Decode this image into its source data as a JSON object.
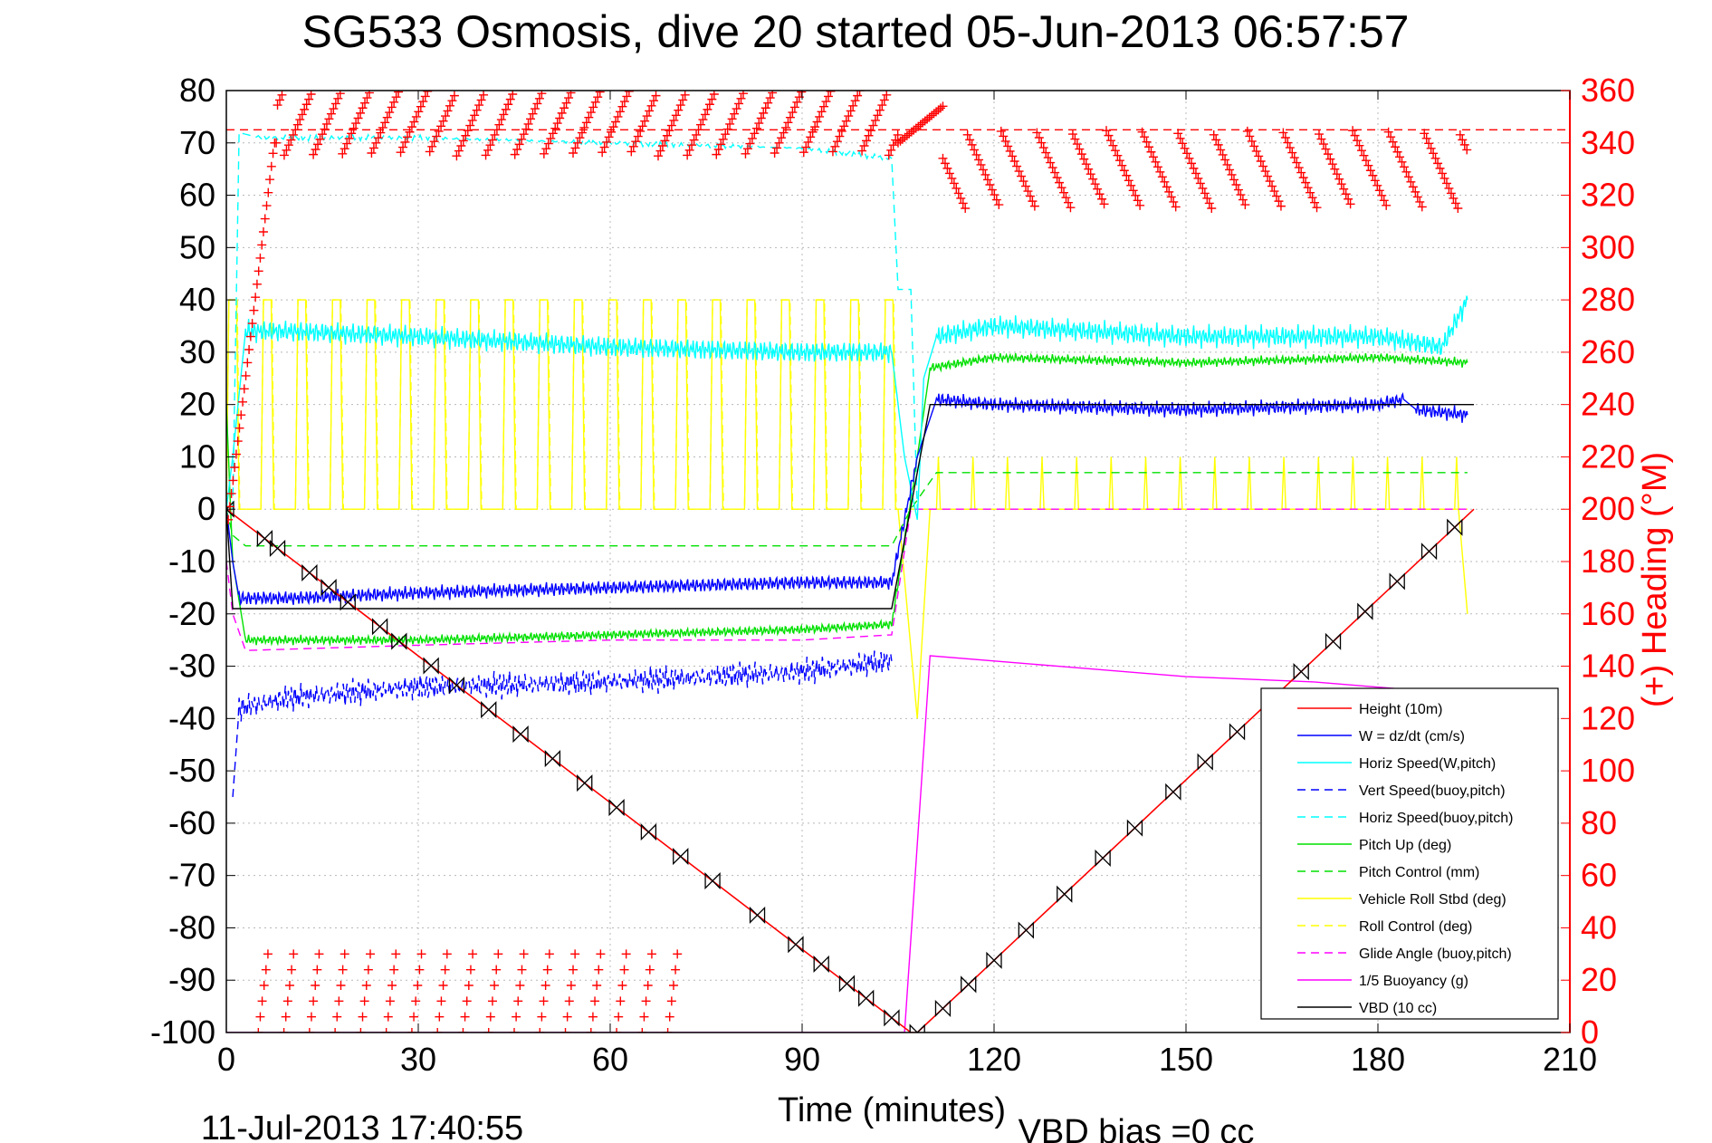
{
  "chart_data": {
    "type": "line",
    "title": "SG533 Osmosis, dive 20 started 05-Jun-2013 06:57:57",
    "xlabel": "Time (minutes)",
    "ylabel_right": "(+) Heading (°M)",
    "footer_left": "11-Jul-2013 17:40:55",
    "footer_right": "VBD bias =0 cc",
    "xlim": [
      0,
      210
    ],
    "ylim": [
      -100,
      80
    ],
    "ylim_right": [
      0,
      360
    ],
    "xticks": [
      0,
      30,
      60,
      90,
      120,
      150,
      180,
      210
    ],
    "yticks": [
      80,
      70,
      60,
      50,
      40,
      30,
      20,
      10,
      0,
      -10,
      -20,
      -30,
      -40,
      -50,
      -60,
      -70,
      -80,
      -90,
      -100
    ],
    "yticks_right": [
      360,
      340,
      320,
      300,
      280,
      260,
      240,
      220,
      200,
      180,
      160,
      140,
      120,
      100,
      80,
      60,
      40,
      20,
      0
    ],
    "grid": true,
    "legend_position": "bottom-right",
    "colors": {
      "height": "#ff0000",
      "w": "#0000ff",
      "horiz_speed": "#00ffff",
      "pitch": "#00e000",
      "roll": "#ffff00",
      "glide": "#ff00ff",
      "buoyancy": "#ff00ff",
      "vbd": "#000000",
      "heading": "#ff0000",
      "axis_right": "#ff0000"
    },
    "legend": [
      {
        "name": "Height (10m)",
        "color": "#ff0000",
        "style": "solid"
      },
      {
        "name": "W = dz/dt (cm/s)",
        "color": "#0000ff",
        "style": "solid"
      },
      {
        "name": "Horiz Speed(W,pitch)",
        "color": "#00ffff",
        "style": "solid"
      },
      {
        "name": "Vert Speed(buoy,pitch)",
        "color": "#0000ff",
        "style": "dashed"
      },
      {
        "name": "Horiz Speed(buoy,pitch)",
        "color": "#00ffff",
        "style": "dashed"
      },
      {
        "name": "Pitch Up (deg)",
        "color": "#00e000",
        "style": "solid"
      },
      {
        "name": "Pitch Control (mm)",
        "color": "#00e000",
        "style": "dashed"
      },
      {
        "name": "Vehicle Roll Stbd (deg)",
        "color": "#ffff00",
        "style": "solid"
      },
      {
        "name": "Roll Control (deg)",
        "color": "#ffff00",
        "style": "dashed"
      },
      {
        "name": "Glide Angle (buoy,pitch)",
        "color": "#ff00ff",
        "style": "dashed"
      },
      {
        "name": "1/5 Buoyancy (g)",
        "color": "#ff00ff",
        "style": "solid"
      },
      {
        "name": "VBD (10 cc)",
        "color": "#000000",
        "style": "solid"
      }
    ],
    "series": [
      {
        "name": "Height (10m)",
        "x": [
          0,
          107,
          108,
          195
        ],
        "y": [
          0,
          -100,
          -100,
          0
        ]
      },
      {
        "name": "W = dz/dt (cm/s)",
        "x": [
          0,
          1,
          2,
          10,
          30,
          60,
          90,
          104,
          108,
          111,
          120,
          150,
          180,
          184,
          186,
          194
        ],
        "y": [
          0,
          -10,
          -17,
          -17,
          -16,
          -15,
          -14,
          -14,
          10,
          21,
          20,
          19,
          20,
          21,
          19,
          18
        ]
      },
      {
        "name": "Horiz Speed(W,pitch)",
        "x": [
          0,
          1,
          3,
          10,
          30,
          60,
          90,
          104,
          106,
          108,
          109,
          111,
          120,
          150,
          180,
          190,
          194
        ],
        "y": [
          0,
          10,
          34,
          34,
          33,
          31,
          30,
          30,
          10,
          -2,
          25,
          33,
          35,
          33,
          33,
          31,
          40
        ]
      },
      {
        "name": "Vert Speed(buoy,pitch)",
        "x": [
          1,
          2,
          10,
          30,
          60,
          90,
          104
        ],
        "y": [
          -55,
          -38,
          -36,
          -34,
          -33,
          -31,
          -29
        ]
      },
      {
        "name": "Horiz Speed(buoy,pitch)",
        "x": [
          1,
          2,
          5,
          30,
          60,
          90,
          104,
          105,
          107,
          108
        ],
        "y": [
          0,
          72,
          71,
          71,
          70,
          69,
          67,
          42,
          42,
          0
        ]
      },
      {
        "name": "Pitch Up (deg)",
        "x": [
          0,
          1,
          3,
          30,
          60,
          90,
          104,
          108,
          110,
          120,
          150,
          180,
          194
        ],
        "y": [
          20,
          -10,
          -25,
          -25,
          -24,
          -23,
          -22,
          10,
          27,
          29,
          28,
          29,
          28
        ]
      },
      {
        "name": "Pitch Control (mm)",
        "x": [
          0,
          1,
          3,
          30,
          60,
          90,
          104,
          107,
          111,
          150,
          194
        ],
        "y": [
          0,
          -5,
          -7,
          -7,
          -7,
          -7,
          -7,
          0,
          7,
          7,
          7
        ]
      },
      {
        "name": "Vehicle Roll Stbd (deg)",
        "note": "alternating 0 / 40 turns, ~5 min period, negative on descent",
        "x": [
          0,
          105,
          110,
          194
        ],
        "y": [
          0,
          0,
          0,
          0
        ]
      },
      {
        "name": "Glide Angle (buoy,pitch)",
        "x": [
          0,
          1,
          3,
          30,
          60,
          90,
          104,
          107,
          110,
          194
        ],
        "y": [
          -10,
          -20,
          -27,
          -26,
          -25,
          -25,
          -24,
          0,
          0,
          0
        ]
      },
      {
        "name": "1/5 Buoyancy (g)",
        "x": [
          0,
          106,
          110,
          130,
          150,
          170,
          190,
          194
        ],
        "y": [
          -100,
          -100,
          -28,
          -30,
          -32,
          -33,
          -35,
          -35
        ]
      },
      {
        "name": "VBD (10 cc)",
        "x": [
          0,
          1,
          2,
          104,
          110,
          111,
          195
        ],
        "y": [
          0,
          -19,
          -19,
          -19,
          20,
          20,
          20
        ]
      },
      {
        "name": "Heading (right axis)",
        "note": "red + markers; ~345 deg descent, ~330 deg ascent, wraps near 0-10",
        "x": [
          0,
          2,
          5,
          8,
          105,
          108,
          115,
          150,
          190,
          194
        ],
        "y": [
          200,
          240,
          300,
          340,
          345,
          356,
          335,
          330,
          340,
          345
        ]
      }
    ]
  }
}
